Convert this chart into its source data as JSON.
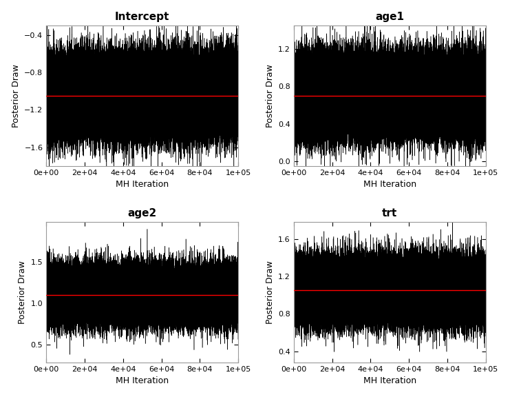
{
  "panels": [
    {
      "title": "Intercept",
      "mean": -1.05,
      "ylim": [
        -1.8,
        -0.3
      ],
      "yticks": [
        -1.6,
        -1.2,
        -0.8,
        -0.4
      ],
      "noise_std": 0.2,
      "red_line": -1.05
    },
    {
      "title": "age1",
      "mean": 0.7,
      "ylim": [
        -0.05,
        1.45
      ],
      "yticks": [
        0.0,
        0.4,
        0.8,
        1.2
      ],
      "noise_std": 0.2,
      "red_line": 0.7
    },
    {
      "title": "age2",
      "mean": 1.1,
      "ylim": [
        0.28,
        1.98
      ],
      "yticks": [
        0.5,
        1.0,
        1.5
      ],
      "noise_std": 0.16,
      "red_line": 1.1
    },
    {
      "title": "trt",
      "mean": 1.05,
      "ylim": [
        0.28,
        1.78
      ],
      "yticks": [
        0.4,
        0.8,
        1.2,
        1.6
      ],
      "noise_std": 0.16,
      "red_line": 1.05
    }
  ],
  "n_iter": 100000,
  "xlabel": "MH Iteration",
  "ylabel": "Posterior Draw",
  "line_color": "#000000",
  "red_color": "#FF0000",
  "bg_color": "#FFFFFF",
  "title_fontsize": 11,
  "label_fontsize": 9,
  "tick_fontsize": 8
}
